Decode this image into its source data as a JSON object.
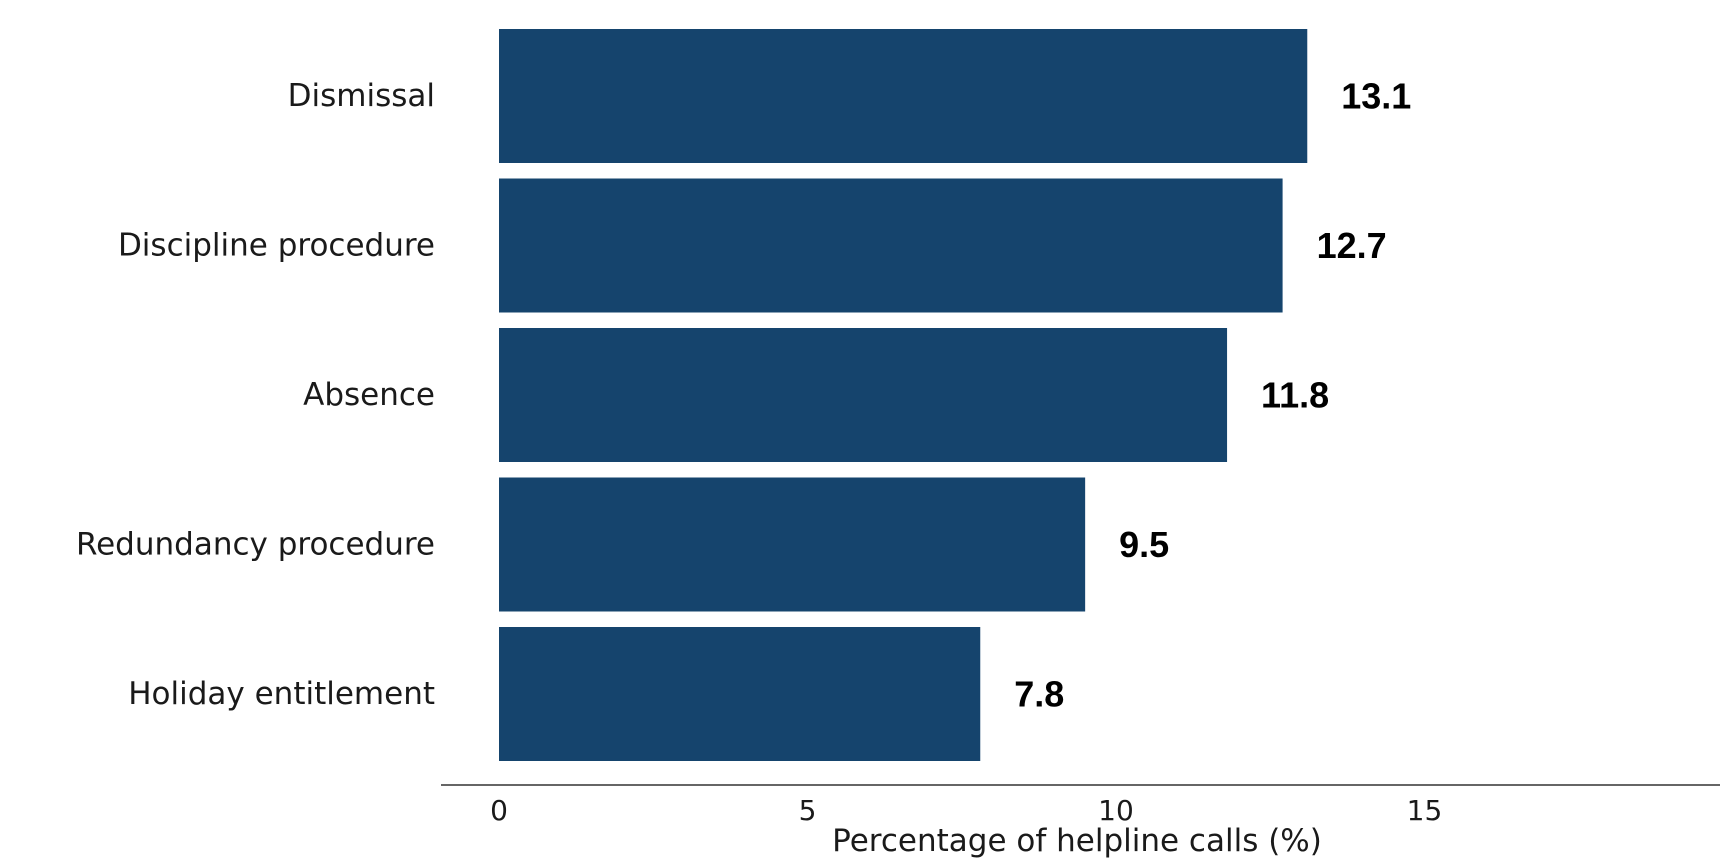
{
  "chart_data": {
    "type": "bar",
    "orientation": "horizontal",
    "categories": [
      "Dismissal",
      "Discipline procedure",
      "Absence",
      "Redundancy procedure",
      "Holiday entitlement"
    ],
    "values": [
      13.1,
      12.7,
      11.8,
      9.5,
      7.8
    ],
    "value_labels": [
      "13.1",
      "12.7",
      "11.8",
      "9.5",
      "7.8"
    ],
    "xlabel": "Percentage of helpline calls (%)",
    "ylabel": "",
    "xlim": [
      -1,
      19.8
    ],
    "xticks": [
      0,
      5,
      10,
      15
    ],
    "xtick_labels": [
      "0",
      "5",
      "10",
      "15"
    ],
    "bar_color": "#15446d",
    "grid": false,
    "legend": "none"
  }
}
